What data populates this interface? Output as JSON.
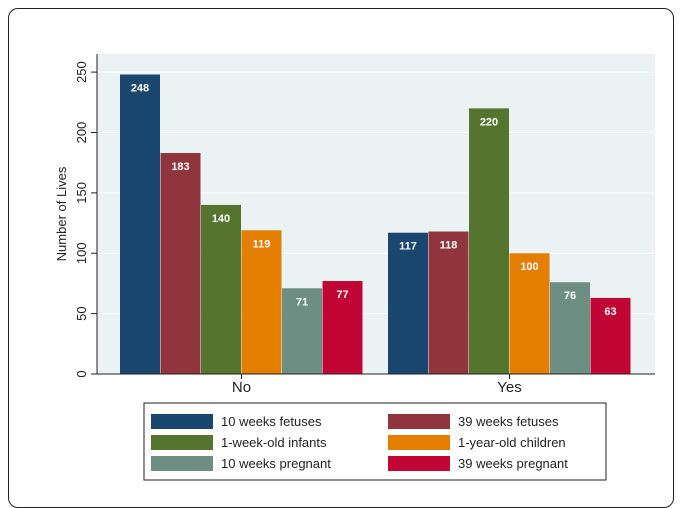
{
  "chart_data": {
    "type": "bar",
    "title": "",
    "xlabel": "",
    "ylabel": "Number of Lives",
    "categories": [
      "No",
      "Yes"
    ],
    "ylim": [
      0,
      265
    ],
    "yticks": [
      0,
      50,
      100,
      150,
      200,
      250
    ],
    "grid": true,
    "legend_position": "bottom",
    "series": [
      {
        "name": "10 weeks fetuses",
        "color": "#1a476f",
        "values": [
          248,
          117
        ]
      },
      {
        "name": "39 weeks fetuses",
        "color": "#90353b",
        "values": [
          183,
          118
        ]
      },
      {
        "name": "1-week-old infants",
        "color": "#55752f",
        "values": [
          140,
          220
        ]
      },
      {
        "name": "1-year-old children",
        "color": "#e37e00",
        "values": [
          119,
          100
        ]
      },
      {
        "name": "10 weeks pregnant",
        "color": "#6e8e84",
        "values": [
          71,
          76
        ]
      },
      {
        "name": "39 weeks pregnant",
        "color": "#c10534",
        "values": [
          77,
          63
        ]
      }
    ]
  },
  "colors": {
    "plot_region": "#eaf2f3",
    "outer_region": "#ffffff",
    "gridline": "#ffffff"
  }
}
